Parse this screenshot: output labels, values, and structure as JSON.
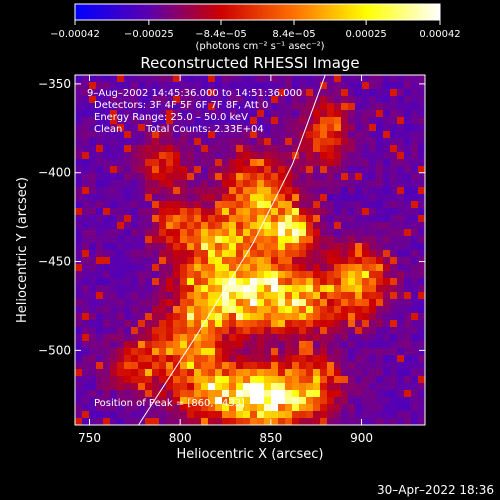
{
  "chart_data": {
    "type": "heatmap",
    "title": "Reconstructed RHESSI Image",
    "xlabel": "Heliocentric X (arcsec)",
    "ylabel": "Heliocentric Y (arcsec)",
    "xlim": [
      742,
      935
    ],
    "ylim": [
      -542,
      -345
    ],
    "x_ticks": [
      750,
      800,
      850,
      900
    ],
    "y_ticks": [
      -350,
      -400,
      -450,
      -500
    ],
    "x_tick_labels": [
      "750",
      "800",
      "850",
      "900"
    ],
    "y_tick_labels": [
      "−350",
      "−400",
      "−450",
      "−500"
    ],
    "colorbar": {
      "range": [
        -0.00042,
        0.00042
      ],
      "ticks": [
        -0.00042,
        -0.00025,
        -8.4e-05,
        8.4e-05,
        0.00025,
        0.00042
      ],
      "tick_labels": [
        "−0.00042",
        "−0.00025",
        "−8.4e−05",
        "8.4e−05",
        "0.00025",
        "0.00042"
      ],
      "units_label": "(photons cm⁻² s⁻¹ asec⁻²)",
      "colormap": [
        "#0000ff",
        "#5a00b0",
        "#cc0000",
        "#ff7000",
        "#ffff00",
        "#ffffff"
      ]
    },
    "annotations": {
      "time": "9–Aug–2002 14:45:36.000 to 14:51:36.000",
      "detectors": "Detectors: 3F 4F 5F 6F 7F 8F, Att 0",
      "energy": "Energy Range: 25.0 – 50.0 keV",
      "method": "Clean",
      "counts": "Total Counts: 2.33E+04",
      "peak": "Position of Peak = [860,−433]"
    },
    "peak": [
      860,
      -433
    ],
    "limb_curve": [
      [
        777,
        -542
      ],
      [
        810,
        -490
      ],
      [
        840,
        -440
      ],
      [
        862,
        -395
      ],
      [
        880,
        -345
      ]
    ],
    "bright_regions": [
      {
        "x": 860,
        "y": -433,
        "amp": 1.0,
        "sx": 9,
        "sy": 9
      },
      {
        "x": 842,
        "y": -412,
        "amp": 0.7,
        "sx": 12,
        "sy": 14
      },
      {
        "x": 825,
        "y": -440,
        "amp": 0.65,
        "sx": 12,
        "sy": 12
      },
      {
        "x": 845,
        "y": -468,
        "amp": 0.9,
        "sx": 16,
        "sy": 13
      },
      {
        "x": 815,
        "y": -470,
        "amp": 0.6,
        "sx": 14,
        "sy": 16
      },
      {
        "x": 800,
        "y": -498,
        "amp": 0.55,
        "sx": 13,
        "sy": 11
      },
      {
        "x": 822,
        "y": -523,
        "amp": 0.7,
        "sx": 18,
        "sy": 11
      },
      {
        "x": 848,
        "y": -528,
        "amp": 0.85,
        "sx": 14,
        "sy": 10
      },
      {
        "x": 870,
        "y": -520,
        "amp": 0.55,
        "sx": 12,
        "sy": 12
      },
      {
        "x": 897,
        "y": -462,
        "amp": 0.65,
        "sx": 11,
        "sy": 13
      },
      {
        "x": 880,
        "y": -378,
        "amp": 0.5,
        "sx": 8,
        "sy": 12
      },
      {
        "x": 800,
        "y": -430,
        "amp": 0.45,
        "sx": 10,
        "sy": 10
      },
      {
        "x": 790,
        "y": -395,
        "amp": 0.4,
        "sx": 9,
        "sy": 9
      },
      {
        "x": 772,
        "y": -510,
        "amp": 0.35,
        "sx": 9,
        "sy": 9
      },
      {
        "x": 870,
        "y": -475,
        "amp": 0.5,
        "sx": 10,
        "sy": 10
      }
    ]
  },
  "footer": {
    "timestamp": "30–Apr–2022 18:36"
  }
}
